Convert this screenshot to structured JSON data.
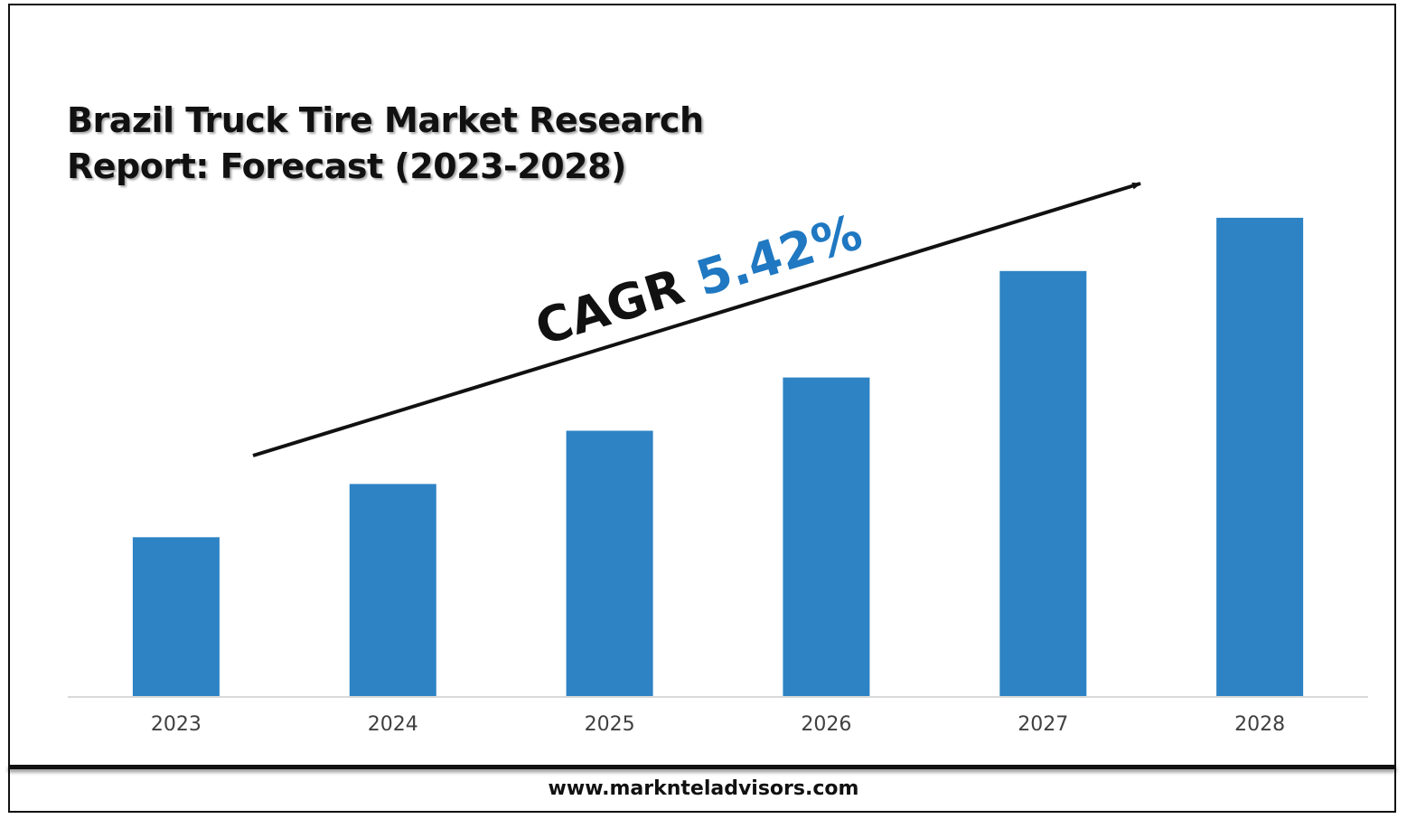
{
  "title_lines": [
    "Brazil Truck Tire Market Research",
    "Report: Forecast (2023-2028)"
  ],
  "footer": {
    "url": "www.marknteladvisors.com"
  },
  "colors": {
    "bar": "#2e83c4",
    "cagr_value": "#1f78c1",
    "text": "#111111"
  },
  "annotation": {
    "prefix": "CAGR ",
    "value": "5.42%"
  },
  "chart_data": {
    "type": "bar",
    "title": "Brazil Truck Tire Market Research Report: Forecast (2023-2028)",
    "categories": [
      "2023",
      "2024",
      "2025",
      "2026",
      "2027",
      "2028"
    ],
    "values": [
      3.0,
      4.0,
      5.0,
      6.0,
      8.0,
      9.0
    ],
    "ylim": [
      0,
      10
    ],
    "xlabel": "",
    "ylabel": "",
    "grid": false,
    "legend": "none",
    "annotation": "CAGR 5.42%"
  }
}
